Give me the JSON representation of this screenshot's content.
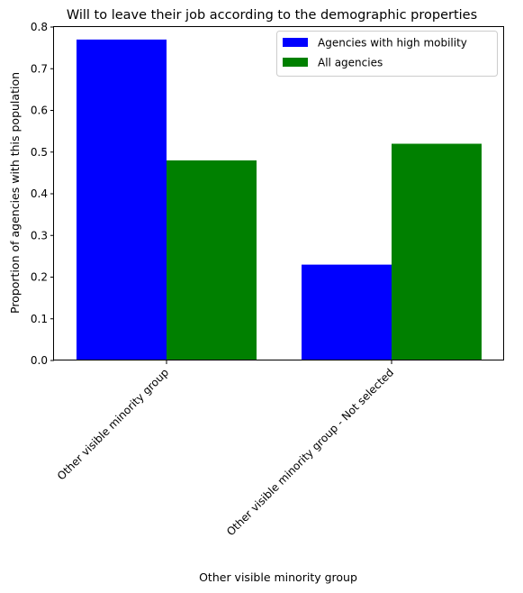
{
  "chart_data": {
    "type": "bar",
    "title": "Will to leave their job according to the demographic properties",
    "xlabel": "Other visible minority group",
    "ylabel": "Proportion of agencies with this population",
    "categories": [
      "Other visible minority group",
      "Other visible minority group - Not selected"
    ],
    "series": [
      {
        "name": "Agencies with high mobility",
        "color": "#0000ff",
        "values": [
          0.77,
          0.23
        ]
      },
      {
        "name": "All agencies",
        "color": "#008000",
        "values": [
          0.48,
          0.52
        ]
      }
    ],
    "ylim": [
      0,
      0.8
    ],
    "yticks": [
      "0.0",
      "0.1",
      "0.2",
      "0.3",
      "0.4",
      "0.5",
      "0.6",
      "0.7",
      "0.8"
    ],
    "grid": false,
    "legend_position": "top-right"
  }
}
